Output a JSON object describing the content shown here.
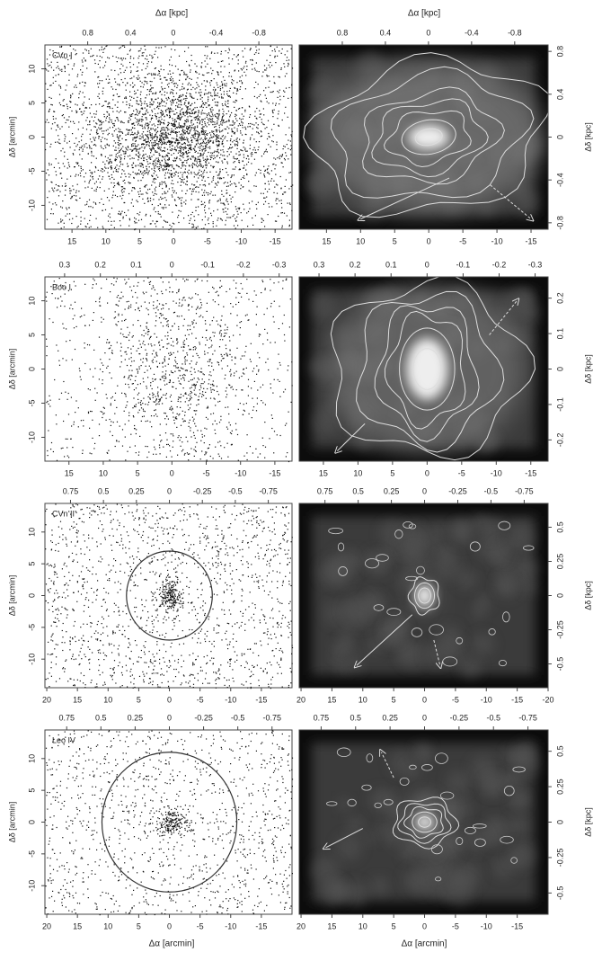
{
  "figure": {
    "x_top_label": "Δα [kpc]",
    "x_bottom_label": "Δα [arcmin]",
    "y_left_label": "Δδ [arcmin]",
    "y_right_label": "Δδ [kpc]",
    "panels": [
      {
        "name": "CVn I",
        "xlim": [
          19,
          -17.5
        ],
        "ylim": [
          -13.5,
          13.5
        ],
        "kpc_xlim": [
          1.2,
          -1.11
        ],
        "kpc_ylim": [
          -0.86,
          0.86
        ],
        "xticks_left": [
          15,
          10,
          5,
          0,
          -5,
          -10,
          -15
        ],
        "xticks_right": [
          15,
          10,
          5,
          0,
          -5,
          -10,
          -15
        ],
        "yticks": [
          -10,
          -5,
          0,
          5,
          10
        ],
        "kpc_xticks": [
          0.8,
          0.4,
          0,
          -0.4,
          -0.8
        ],
        "kpc_yticks": [
          -0.8,
          -0.4,
          0,
          0.4,
          0.8
        ]
      },
      {
        "name": "Boo I",
        "xlim": [
          18.5,
          -17.5
        ],
        "ylim": [
          -13.5,
          13.5
        ],
        "kpc_xlim": [
          0.355,
          -0.336
        ],
        "kpc_ylim": [
          -0.26,
          0.26
        ],
        "xticks_left": [
          15,
          10,
          5,
          0,
          -5,
          -10,
          -15
        ],
        "xticks_right": [
          15,
          10,
          5,
          0,
          -5,
          -10,
          -15
        ],
        "yticks": [
          -10,
          -5,
          0,
          5,
          10
        ],
        "kpc_xticks": [
          0.3,
          0.2,
          0.1,
          0,
          -0.1,
          -0.2,
          -0.3
        ],
        "kpc_yticks": [
          -0.2,
          -0.1,
          0,
          0.1,
          0.2
        ]
      },
      {
        "name": "CVn II",
        "xlim": [
          20.3,
          -20
        ],
        "ylim": [
          -14.5,
          14.5
        ],
        "kpc_xlim": [
          0.944,
          -0.93
        ],
        "kpc_ylim": [
          -0.674,
          0.674
        ],
        "xticks_left": [
          20,
          15,
          10,
          5,
          0,
          -5,
          -10,
          -15
        ],
        "xticks_right": [
          20,
          15,
          10,
          5,
          0,
          -5,
          -10,
          -15,
          -20
        ],
        "yticks": [
          -10,
          -5,
          0,
          5,
          10
        ],
        "kpc_xticks": [
          0.75,
          0.5,
          0.25,
          0,
          -0.25,
          -0.5,
          -0.75
        ],
        "kpc_yticks": [
          -0.5,
          -0.25,
          0,
          0.25,
          0.5
        ]
      },
      {
        "name": "Leo IV",
        "xlim": [
          20.3,
          -20
        ],
        "ylim": [
          -14.5,
          14.5
        ],
        "kpc_xlim": [
          0.909,
          -0.896
        ],
        "kpc_ylim": [
          -0.65,
          0.65
        ],
        "xticks_left": [
          20,
          15,
          10,
          5,
          0,
          -5,
          -10,
          -15
        ],
        "xticks_right": [
          20,
          15,
          10,
          5,
          0,
          -5,
          -10,
          -15
        ],
        "yticks": [
          -10,
          -5,
          0,
          5,
          10
        ],
        "kpc_xticks": [
          0.75,
          0.5,
          0.25,
          0,
          -0.25,
          -0.5,
          -0.75
        ],
        "kpc_yticks": [
          -0.5,
          -0.25,
          0,
          0.25,
          0.5
        ]
      }
    ]
  }
}
